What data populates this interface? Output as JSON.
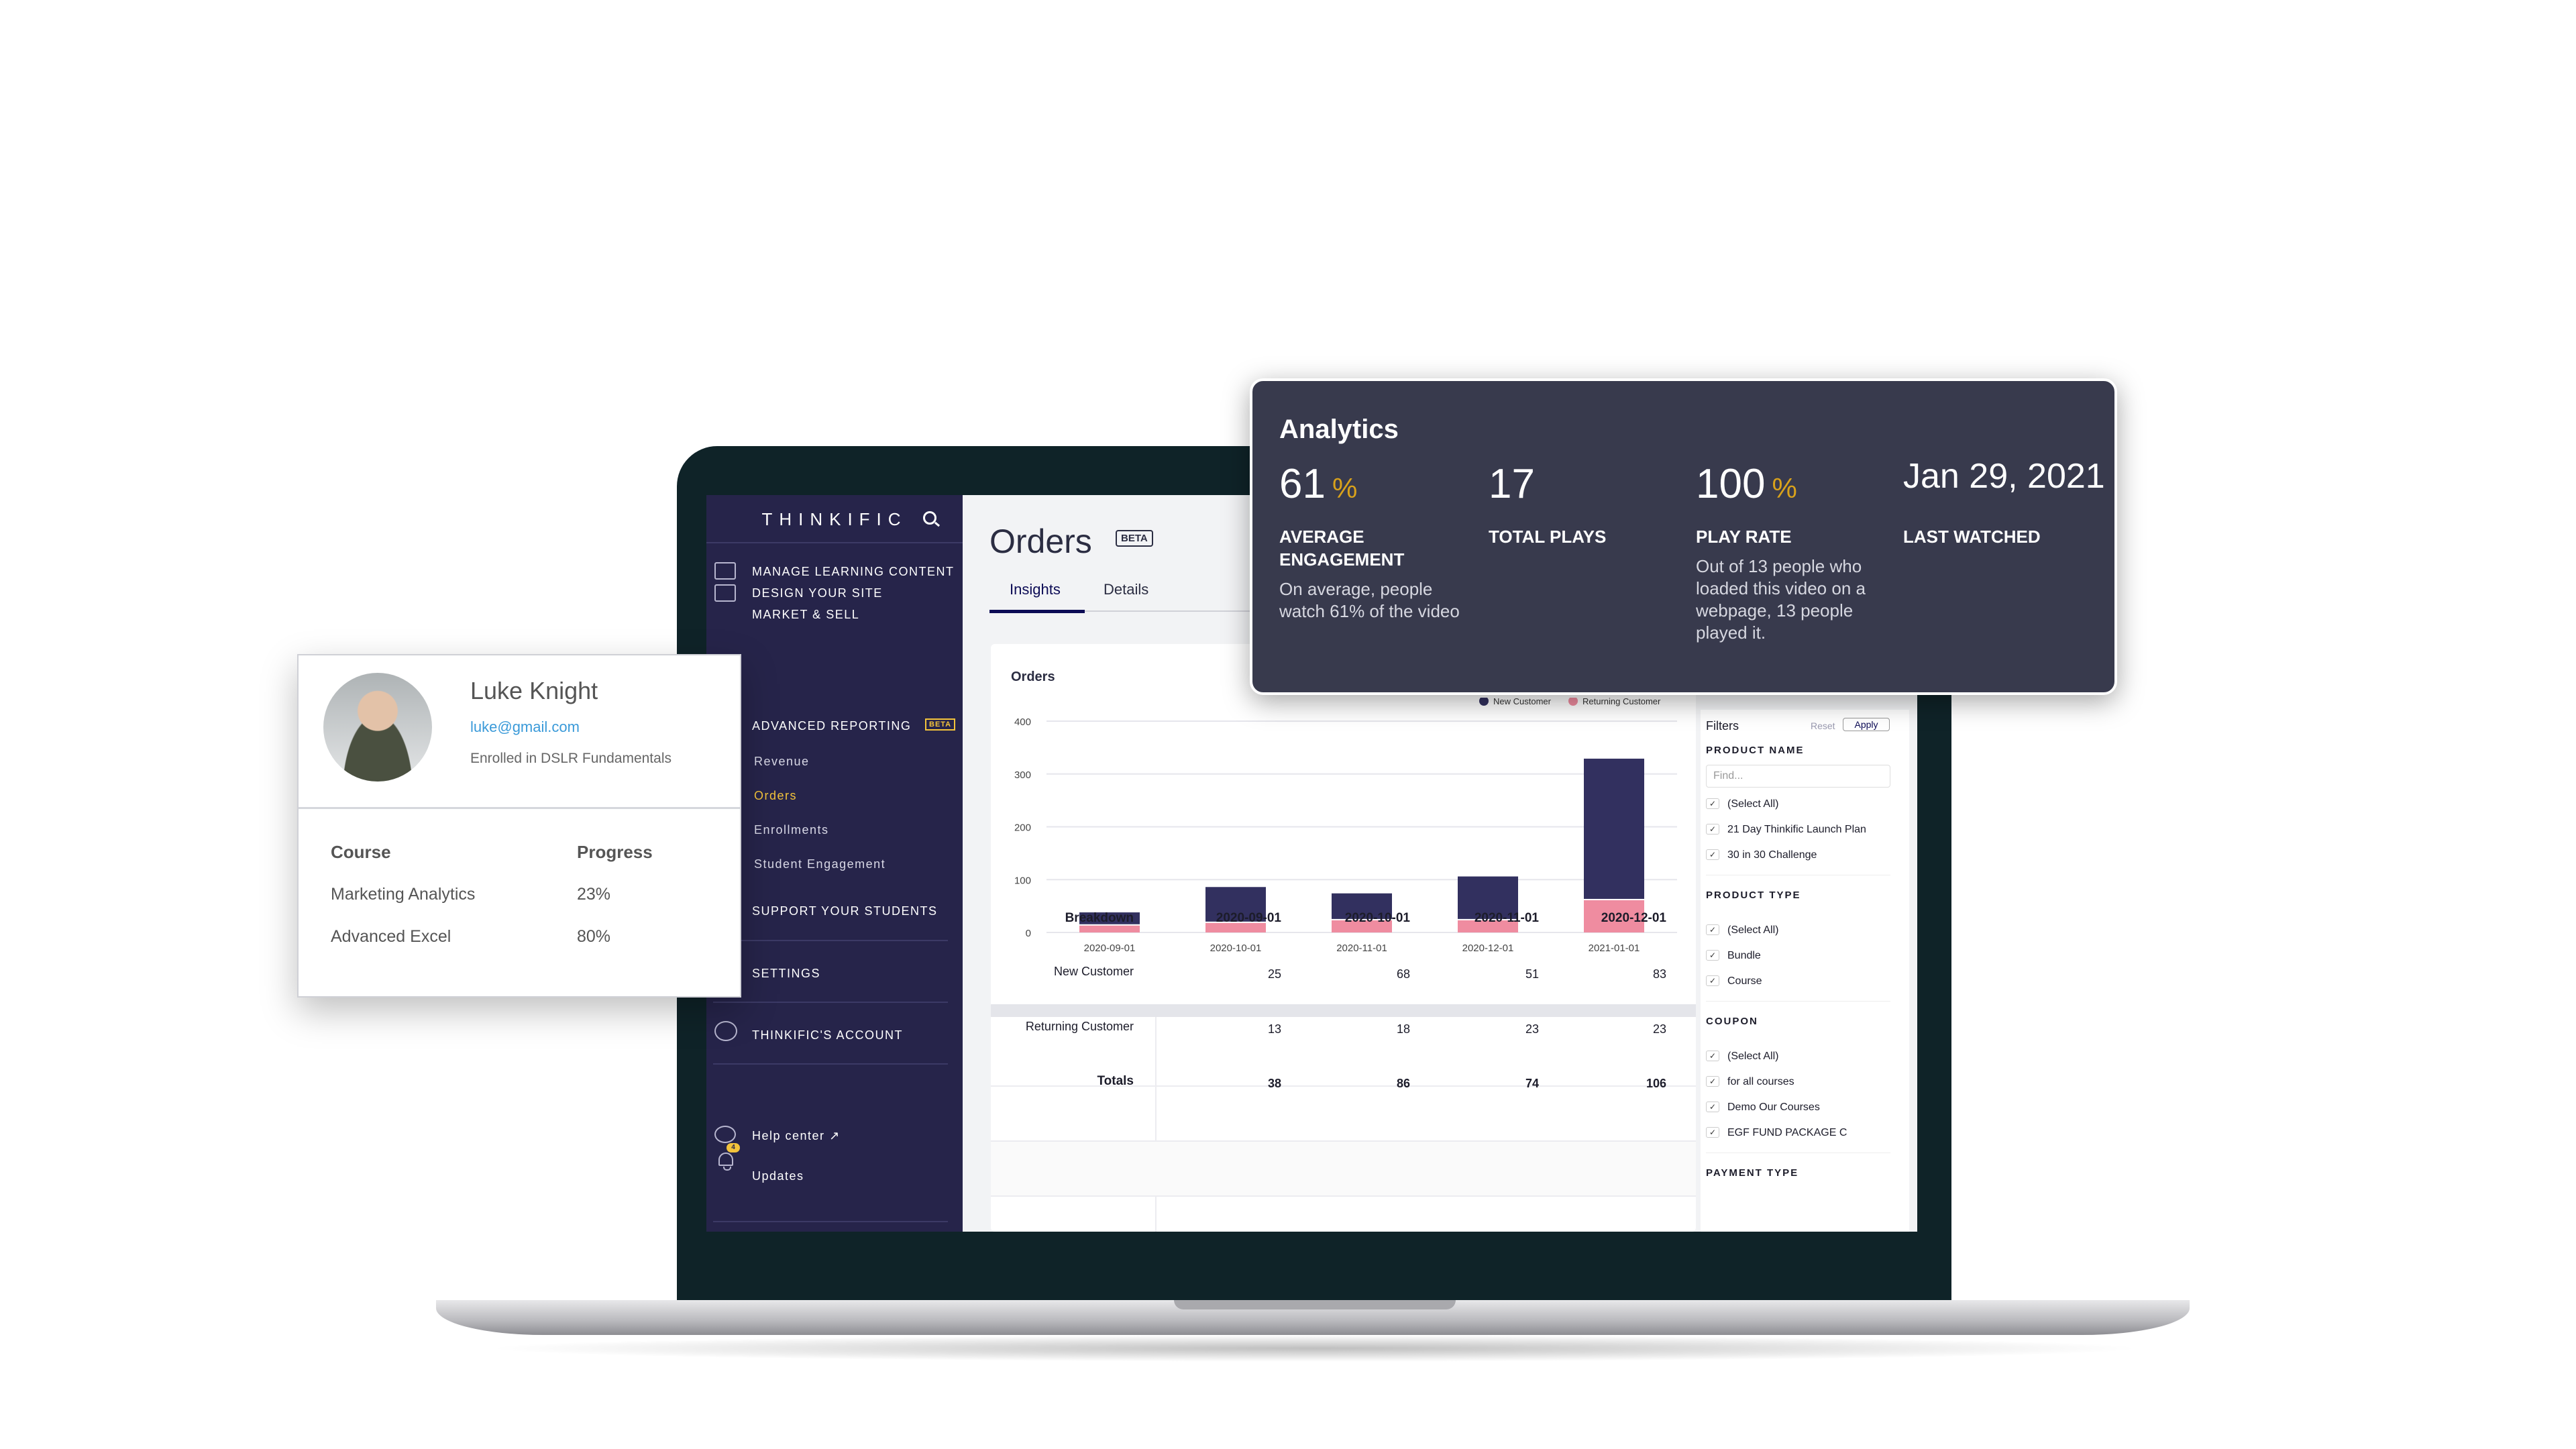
{
  "colors": {
    "sidebar": "#26244a",
    "accent": "#f3c33b",
    "new_customer": "#32305f",
    "returning_customer": "#ef8ca0",
    "analytics_bg": "#383a4d",
    "link": "#3a9ad9"
  },
  "sidebar": {
    "logo": "THINKIFIC",
    "items": [
      {
        "label": "MANAGE LEARNING CONTENT",
        "icon": "edit-icon"
      },
      {
        "label": "DESIGN YOUR SITE",
        "icon": "layout-icon"
      },
      {
        "label": "MARKET & SELL"
      },
      {
        "label": "ADVANCED REPORTING",
        "badge": "BETA"
      },
      {
        "label": "SUPPORT YOUR STUDENTS"
      },
      {
        "label": "SETTINGS"
      },
      {
        "label": "THINKIFIC'S ACCOUNT",
        "icon": "user-icon"
      }
    ],
    "subitems": [
      "Revenue",
      "Orders",
      "Enrollments",
      "Student Engagement"
    ],
    "active_subitem": "Orders",
    "help": "Help center",
    "updates": "Updates",
    "updates_count": "4"
  },
  "main": {
    "title": "Orders",
    "badge": "BETA",
    "tabs": [
      "Insights",
      "Details"
    ],
    "active_tab": "Insights",
    "card_title": "Orders"
  },
  "chart_data": {
    "type": "bar",
    "stacked": true,
    "categories": [
      "2020-09-01",
      "2020-10-01",
      "2020-11-01",
      "2020-12-01",
      "2021-01-01"
    ],
    "series": [
      {
        "name": "New Customer",
        "values": [
          25,
          68,
          51,
          83,
          268
        ]
      },
      {
        "name": "Returning Customer",
        "values": [
          13,
          18,
          23,
          23,
          61
        ]
      }
    ],
    "ylim": [
      0,
      400
    ],
    "yticks": [
      0,
      100,
      200,
      300,
      400
    ],
    "grid": true,
    "legend": "top-right"
  },
  "table": {
    "header": [
      "Breakdown",
      "2020-09-01",
      "2020-10-01",
      "2020-11-01",
      "2020-12-01"
    ],
    "rows": [
      [
        "New Customer",
        "25",
        "68",
        "51",
        "83"
      ],
      [
        "Returning Customer",
        "13",
        "18",
        "23",
        "23"
      ],
      [
        "Totals",
        "38",
        "86",
        "74",
        "106"
      ]
    ]
  },
  "filters": {
    "title": "Filters",
    "reset": "Reset",
    "apply": "Apply",
    "product_name": {
      "label": "PRODUCT NAME",
      "placeholder": "Find...",
      "options": [
        "(Select All)",
        "21 Day Thinkific Launch Plan",
        "30 in 30 Challenge"
      ]
    },
    "product_type": {
      "label": "PRODUCT TYPE",
      "options": [
        "(Select All)",
        "Bundle",
        "Course"
      ]
    },
    "coupon": {
      "label": "COUPON",
      "options": [
        "(Select All)",
        "for all courses",
        "Demo Our Courses",
        "EGF FUND PACKAGE C"
      ]
    },
    "payment_type": {
      "label": "PAYMENT TYPE"
    }
  },
  "analytics": {
    "title": "Analytics",
    "stats": [
      {
        "value": "61",
        "unit": "%",
        "label": "AVERAGE ENGAGEMENT",
        "desc": "On average, people watch 61% of the video"
      },
      {
        "value": "17",
        "unit": "",
        "label": "TOTAL PLAYS",
        "desc": ""
      },
      {
        "value": "100",
        "unit": "%",
        "label": "PLAY RATE",
        "desc": "Out of 13 people who loaded this video on a webpage, 13 people played it."
      },
      {
        "value": "Jan 29, 2021",
        "unit": "",
        "label": "LAST WATCHED",
        "desc": ""
      }
    ]
  },
  "profile": {
    "name": "Luke Knight",
    "email": "luke@gmail.com",
    "enrolled": "Enrolled in DSLR Fundamentals",
    "columns": [
      "Course",
      "Progress"
    ],
    "courses": [
      {
        "course": "Marketing Analytics",
        "progress": "23%"
      },
      {
        "course": "Advanced Excel",
        "progress": "80%"
      }
    ]
  }
}
